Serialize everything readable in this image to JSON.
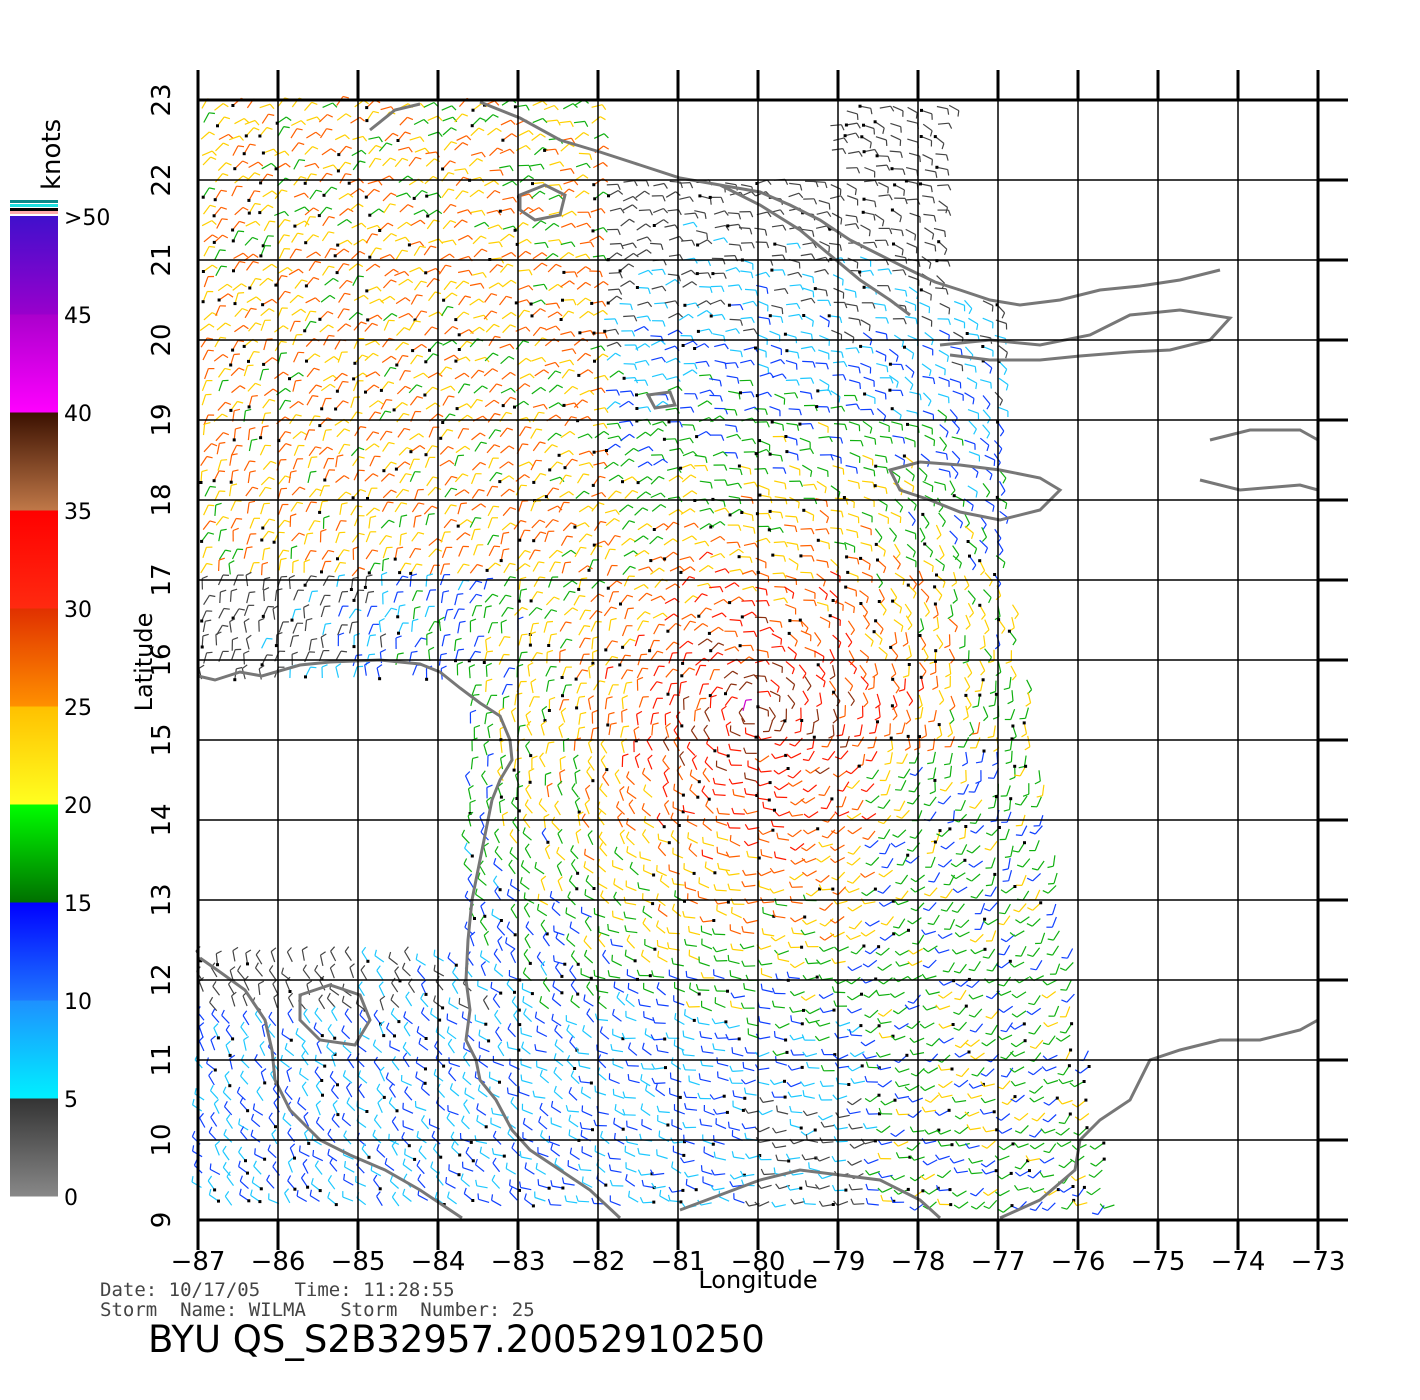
{
  "chart_data": {
    "type": "wind-barb-map",
    "xlabel": "Longitude",
    "ylabel": "Latitude",
    "xlim": [
      -87,
      -73
    ],
    "ylim": [
      9,
      23
    ],
    "x_ticks": [
      -87,
      -86,
      -85,
      -84,
      -83,
      -82,
      -81,
      -80,
      -79,
      -78,
      -77,
      -76,
      -75,
      -74,
      -73
    ],
    "y_ticks": [
      9,
      10,
      11,
      12,
      13,
      14,
      15,
      16,
      17,
      18,
      19,
      20,
      21,
      22,
      23
    ],
    "grid": true,
    "colorbar": {
      "unit": "knots",
      "labels": [
        "0",
        "5",
        "10",
        "15",
        "20",
        "25",
        "30",
        "35",
        "40",
        "45",
        ">50"
      ],
      "bands": [
        {
          "from": 0,
          "to": 5,
          "top": "#333333",
          "bottom": "#888888"
        },
        {
          "from": 5,
          "to": 10,
          "top": "#1e90ff",
          "bottom": "#00f0ff"
        },
        {
          "from": 10,
          "to": 15,
          "top": "#0000ff",
          "bottom": "#1e78ff"
        },
        {
          "from": 15,
          "to": 20,
          "top": "#00ff00",
          "bottom": "#007000"
        },
        {
          "from": 20,
          "to": 25,
          "top": "#ffc000",
          "bottom": "#ffff20"
        },
        {
          "from": 25,
          "to": 30,
          "top": "#e03000",
          "bottom": "#ff9000"
        },
        {
          "from": 30,
          "to": 35,
          "top": "#ff0000",
          "bottom": "#ff2a10"
        },
        {
          "from": 35,
          "to": 40,
          "top": "#3a1000",
          "bottom": "#c07848"
        },
        {
          "from": 40,
          "to": 45,
          "top": "#aa00cc",
          "bottom": "#ff00ff"
        },
        {
          "from": 45,
          "to": 50,
          "top": "#4010cc",
          "bottom": "#9900cc"
        }
      ]
    }
  },
  "footer": {
    "line1": "Date: 10/17/05   Time: 11:28:55",
    "line2": "Storm  Name: WILMA   Storm  Number: 25",
    "title": "BYU  QS_S2B32957.20052910250"
  }
}
